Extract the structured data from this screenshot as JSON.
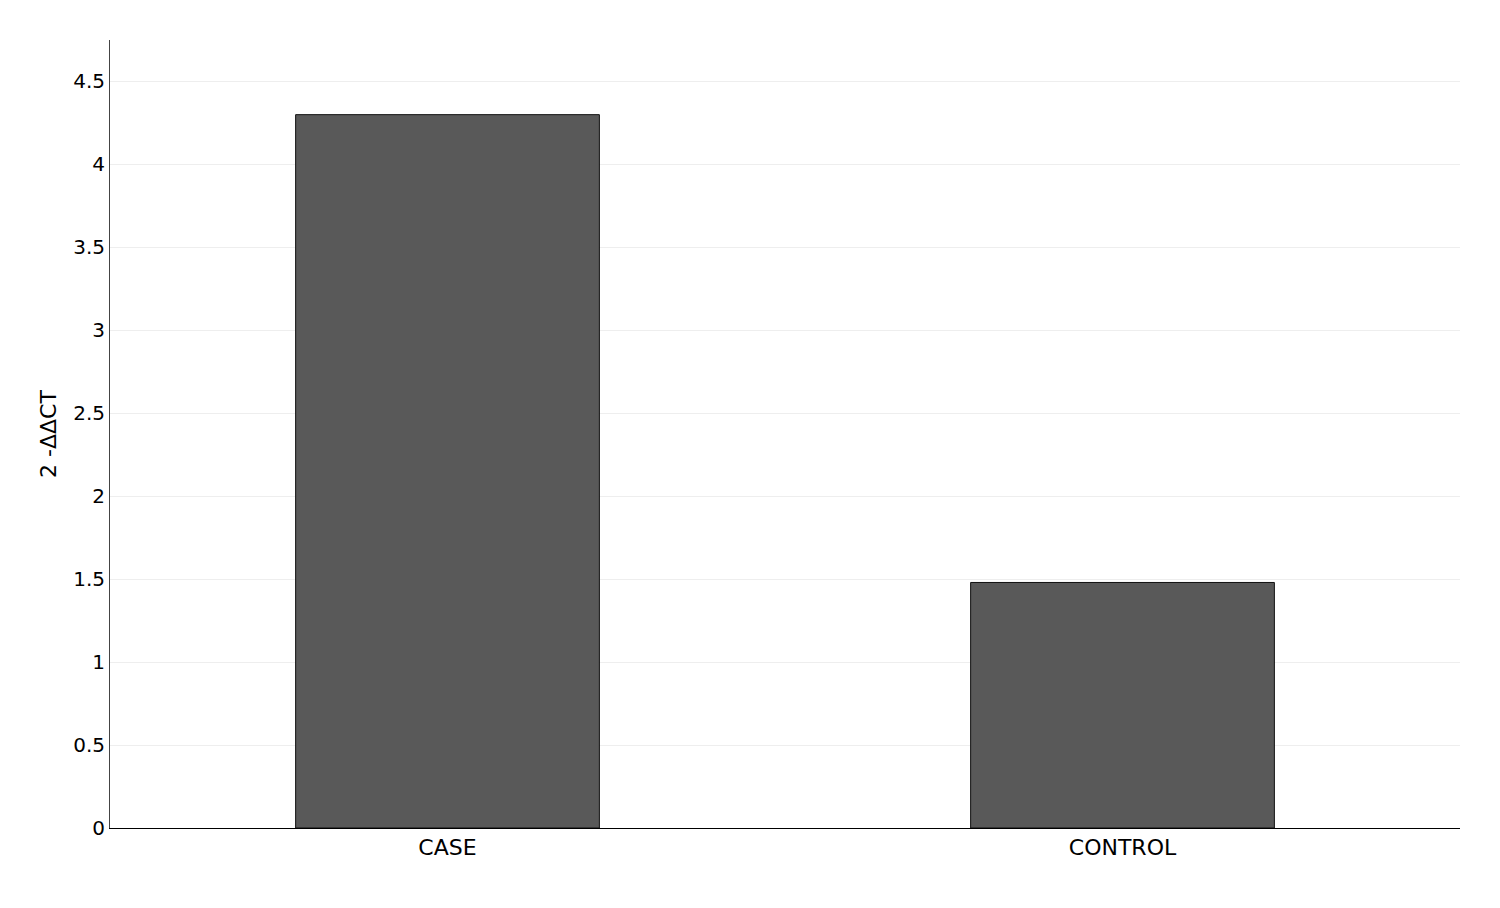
{
  "chart_data": {
    "type": "bar",
    "categories": [
      "CASE",
      "CONTROL"
    ],
    "values": [
      4.3,
      1.48
    ],
    "color": "#595959",
    "ylabel": "2 -ΔΔCT",
    "ylim": [
      0,
      4.75
    ],
    "yticks": [
      0,
      0.5,
      1,
      1.5,
      2,
      2.5,
      3,
      3.5,
      4,
      4.5
    ],
    "grid": true
  }
}
